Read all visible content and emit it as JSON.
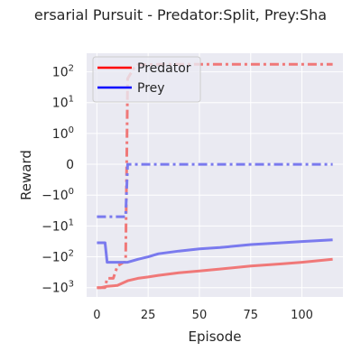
{
  "chart_data": {
    "type": "line",
    "title": "ersarial Pursuit - Predator:Split, Prey:Sha",
    "xlabel": "Episode",
    "ylabel": "Reward",
    "yscale": "symlog",
    "xlim": [
      -5,
      120
    ],
    "ylim": [
      -2000,
      400
    ],
    "grid": true,
    "legend_position": "top-left",
    "x_ticks": [
      0,
      25,
      50,
      75,
      100
    ],
    "y_ticks": [
      {
        "value": 100,
        "label": "10^2"
      },
      {
        "value": 10,
        "label": "10^1"
      },
      {
        "value": 1,
        "label": "10^0"
      },
      {
        "value": 0,
        "label": "0"
      },
      {
        "value": -1,
        "label": "−10^0"
      },
      {
        "value": -10,
        "label": "−10^1"
      },
      {
        "value": -100,
        "label": "−10^2"
      },
      {
        "value": -1000,
        "label": "−10^3"
      }
    ],
    "legend": [
      {
        "name": "Predator",
        "color": "#ff0000"
      },
      {
        "name": "Prey",
        "color": "#0000ff"
      }
    ],
    "series": [
      {
        "name": "Predator",
        "style": "dashdot",
        "color": "#f07878",
        "x": [
          0,
          2,
          4,
          5,
          8,
          10,
          13,
          14,
          15,
          18,
          20,
          30,
          50,
          75,
          100,
          115
        ],
        "y": [
          -1000,
          -1000,
          -1000,
          -500,
          -500,
          -200,
          -150,
          -150,
          60,
          130,
          170,
          175,
          175,
          175,
          175,
          175
        ]
      },
      {
        "name": "Predator",
        "style": "solid",
        "color": "#f07878",
        "x": [
          0,
          2,
          5,
          10,
          15,
          20,
          25,
          30,
          40,
          50,
          60,
          75,
          90,
          100,
          115
        ],
        "y": [
          -1000,
          -1000,
          -900,
          -850,
          -600,
          -500,
          -450,
          -400,
          -330,
          -290,
          -250,
          -200,
          -170,
          -150,
          -120
        ]
      },
      {
        "name": "Prey",
        "style": "dashdot",
        "color": "#7a7aee",
        "x": [
          0,
          5,
          10,
          13,
          14,
          15,
          20,
          30,
          50,
          75,
          100,
          115
        ],
        "y": [
          -5,
          -5,
          -5,
          -5,
          -5,
          0,
          0,
          0,
          0,
          0,
          0,
          0
        ]
      },
      {
        "name": "Prey",
        "style": "solid",
        "color": "#7a7aee",
        "x": [
          0,
          4,
          5,
          10,
          15,
          20,
          25,
          30,
          40,
          50,
          60,
          75,
          90,
          100,
          115
        ],
        "y": [
          -35,
          -35,
          -150,
          -150,
          -150,
          -120,
          -100,
          -80,
          -65,
          -55,
          -50,
          -40,
          -35,
          -32,
          -28
        ]
      }
    ]
  }
}
